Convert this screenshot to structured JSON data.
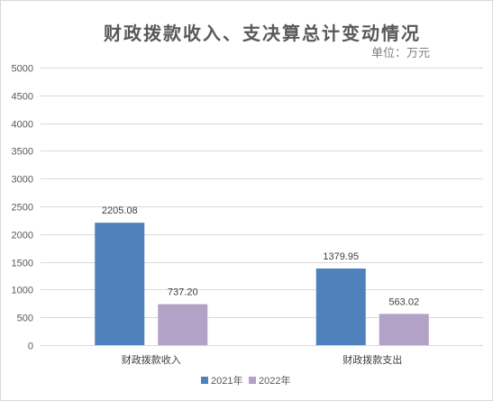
{
  "chart_data": {
    "type": "bar",
    "title": "财政拨款收入、支决算总计变动情况",
    "unit_label": "单位：万元",
    "categories": [
      "财政拨款收入",
      "财政拨款支出"
    ],
    "series": [
      {
        "name": "2021年",
        "values": [
          2205.08,
          1379.95
        ],
        "labels": [
          "2205.08",
          "1379.95"
        ],
        "color": "#4f81bd"
      },
      {
        "name": "2022年",
        "values": [
          737.2,
          563.02
        ],
        "labels": [
          "737.20",
          "563.02"
        ],
        "color": "#b3a2c7"
      }
    ],
    "ylim": [
      0,
      5000
    ],
    "yticks": [
      0,
      500,
      1000,
      1500,
      2000,
      2500,
      3000,
      3500,
      4000,
      4500,
      5000
    ],
    "grid": true,
    "legend_position": "bottom"
  }
}
